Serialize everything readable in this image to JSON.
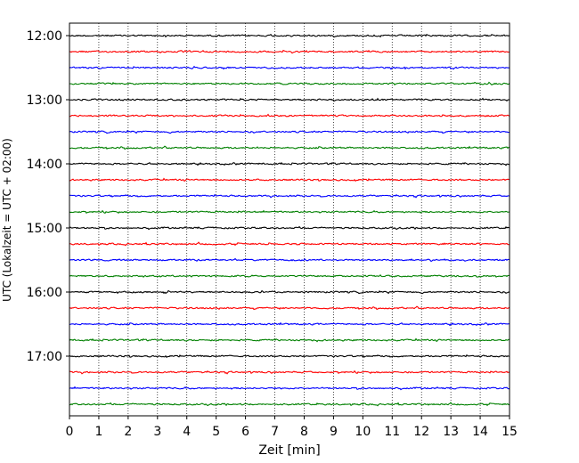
{
  "chart_data": {
    "type": "line",
    "title": "",
    "xlabel": "Zeit  [min]",
    "ylabel": "UTC (Lokalzeit = UTC + 02:00)",
    "xlim": [
      0,
      15
    ],
    "x_ticks": [
      "0",
      "1",
      "2",
      "3",
      "4",
      "5",
      "6",
      "7",
      "8",
      "9",
      "10",
      "11",
      "12",
      "13",
      "14",
      "15"
    ],
    "y_ticks": [
      "12:00",
      "13:00",
      "14:00",
      "15:00",
      "16:00",
      "17:00"
    ],
    "grid": "vertical dotted",
    "trace_interval_min": 15,
    "start_time": "12:00",
    "trace_colors": [
      "#000000",
      "#ff0000",
      "#0000ff",
      "#008000"
    ],
    "series": [
      {
        "time": "12:00",
        "color": "#000000"
      },
      {
        "time": "12:15",
        "color": "#ff0000"
      },
      {
        "time": "12:30",
        "color": "#0000ff"
      },
      {
        "time": "12:45",
        "color": "#008000"
      },
      {
        "time": "13:00",
        "color": "#000000"
      },
      {
        "time": "13:15",
        "color": "#ff0000"
      },
      {
        "time": "13:30",
        "color": "#0000ff"
      },
      {
        "time": "13:45",
        "color": "#008000"
      },
      {
        "time": "14:00",
        "color": "#000000"
      },
      {
        "time": "14:15",
        "color": "#ff0000"
      },
      {
        "time": "14:30",
        "color": "#0000ff"
      },
      {
        "time": "14:45",
        "color": "#008000"
      },
      {
        "time": "15:00",
        "color": "#000000"
      },
      {
        "time": "15:15",
        "color": "#ff0000"
      },
      {
        "time": "15:30",
        "color": "#0000ff"
      },
      {
        "time": "15:45",
        "color": "#008000"
      },
      {
        "time": "16:00",
        "color": "#000000"
      },
      {
        "time": "16:15",
        "color": "#ff0000"
      },
      {
        "time": "16:30",
        "color": "#0000ff"
      },
      {
        "time": "16:45",
        "color": "#008000"
      },
      {
        "time": "17:00",
        "color": "#000000"
      },
      {
        "time": "17:15",
        "color": "#ff0000"
      },
      {
        "time": "17:30",
        "color": "#0000ff"
      },
      {
        "time": "17:45",
        "color": "#008000"
      }
    ]
  }
}
